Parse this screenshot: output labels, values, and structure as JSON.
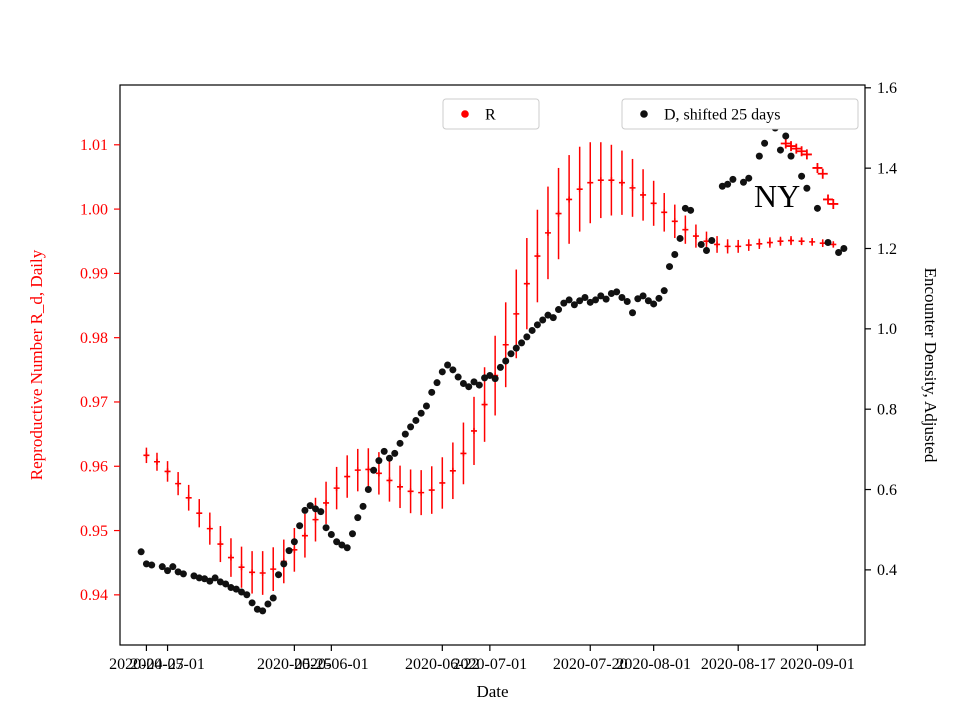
{
  "figure": {
    "annotation": {
      "text": "NY",
      "date": "2020-08-20",
      "value_left": 1.0003
    }
  },
  "chart_data": {
    "type": "scatter",
    "title": "",
    "xlabel": "Date",
    "x_lim": [
      "2020-04-22",
      "2020-09-10"
    ],
    "x_ticks_months": [
      "2020-05-01",
      "2020-06-01",
      "2020-07-01",
      "2020-08-01",
      "2020-09-01"
    ],
    "x_ticks_weeks": [
      "2020-04-27",
      "2020-05-25",
      "2020-06-22",
      "2020-07-20",
      "2020-08-17"
    ],
    "y_left": {
      "label": "Reproductive Number R_d, Daily",
      "color": "#ff0000",
      "lim": [
        0.9322,
        1.0193
      ],
      "ticks": [
        [
          0.94,
          "0.94"
        ],
        [
          0.95,
          "0.95"
        ],
        [
          0.96,
          "0.96"
        ],
        [
          0.97,
          "0.97"
        ],
        [
          0.98,
          "0.98"
        ],
        [
          0.99,
          "0.99"
        ],
        [
          1.0,
          "1.00"
        ],
        [
          1.01,
          "1.01"
        ]
      ]
    },
    "y_right": {
      "label": "Encounter Density, Adjusted",
      "color": "#000000",
      "lim": [
        0.213,
        1.607
      ],
      "ticks": [
        [
          0.4,
          "0.4"
        ],
        [
          0.6,
          "0.6"
        ],
        [
          0.8,
          "0.8"
        ],
        [
          1.0,
          "1.0"
        ],
        [
          1.2,
          "1.2"
        ],
        [
          1.4,
          "1.4"
        ],
        [
          1.6,
          "1.6"
        ]
      ]
    },
    "legends": [
      {
        "label": "R",
        "marker_color": "#ff0000"
      },
      {
        "label": "D, shifted 25 days",
        "marker_color": "#111111"
      }
    ],
    "series": [
      {
        "name": "R",
        "axis": "left",
        "color": "#ff0000",
        "marker": "plus-errorbar",
        "points": [
          [
            "2020-04-27",
            0.9617,
            0.0012
          ],
          [
            "2020-04-29",
            0.9607,
            0.0014
          ],
          [
            "2020-05-01",
            0.9592,
            0.0016
          ],
          [
            "2020-05-03",
            0.9573,
            0.0018
          ],
          [
            "2020-05-05",
            0.9551,
            0.002
          ],
          [
            "2020-05-07",
            0.9527,
            0.0022
          ],
          [
            "2020-05-09",
            0.9503,
            0.0025
          ],
          [
            "2020-05-11",
            0.9479,
            0.0028
          ],
          [
            "2020-05-13",
            0.9458,
            0.003
          ],
          [
            "2020-05-15",
            0.9443,
            0.0032
          ],
          [
            "2020-05-17",
            0.9435,
            0.0033
          ],
          [
            "2020-05-19",
            0.9434,
            0.0034
          ],
          [
            "2020-05-21",
            0.944,
            0.0034
          ],
          [
            "2020-05-23",
            0.9452,
            0.0034
          ],
          [
            "2020-05-25",
            0.947,
            0.0034
          ],
          [
            "2020-05-27",
            0.9492,
            0.0034
          ],
          [
            "2020-05-29",
            0.9517,
            0.0034
          ],
          [
            "2020-05-31",
            0.9543,
            0.0033
          ],
          [
            "2020-06-02",
            0.9566,
            0.0033
          ],
          [
            "2020-06-04",
            0.9584,
            0.0033
          ],
          [
            "2020-06-06",
            0.9594,
            0.0033
          ],
          [
            "2020-06-08",
            0.9595,
            0.0033
          ],
          [
            "2020-06-10",
            0.9589,
            0.0033
          ],
          [
            "2020-06-12",
            0.9578,
            0.0033
          ],
          [
            "2020-06-14",
            0.9568,
            0.0033
          ],
          [
            "2020-06-16",
            0.9561,
            0.0034
          ],
          [
            "2020-06-18",
            0.9559,
            0.0035
          ],
          [
            "2020-06-20",
            0.9563,
            0.0037
          ],
          [
            "2020-06-22",
            0.9574,
            0.004
          ],
          [
            "2020-06-24",
            0.9593,
            0.0044
          ],
          [
            "2020-06-26",
            0.962,
            0.0048
          ],
          [
            "2020-06-28",
            0.9655,
            0.0053
          ],
          [
            "2020-06-30",
            0.9696,
            0.0058
          ],
          [
            "2020-07-02",
            0.9741,
            0.0062
          ],
          [
            "2020-07-04",
            0.9789,
            0.0066
          ],
          [
            "2020-07-06",
            0.9837,
            0.0069
          ],
          [
            "2020-07-08",
            0.9884,
            0.0071
          ],
          [
            "2020-07-10",
            0.9927,
            0.0072
          ],
          [
            "2020-07-12",
            0.9963,
            0.0072
          ],
          [
            "2020-07-14",
            0.9993,
            0.0071
          ],
          [
            "2020-07-16",
            1.0015,
            0.0069
          ],
          [
            "2020-07-18",
            1.0031,
            0.0066
          ],
          [
            "2020-07-20",
            1.0041,
            0.0063
          ],
          [
            "2020-07-22",
            1.0045,
            0.0059
          ],
          [
            "2020-07-24",
            1.0045,
            0.0055
          ],
          [
            "2020-07-26",
            1.0041,
            0.005
          ],
          [
            "2020-07-28",
            1.0033,
            0.0045
          ],
          [
            "2020-07-30",
            1.0022,
            0.004
          ],
          [
            "2020-08-01",
            1.0009,
            0.0035
          ],
          [
            "2020-08-03",
            0.9995,
            0.003
          ],
          [
            "2020-08-05",
            0.9981,
            0.0026
          ],
          [
            "2020-08-07",
            0.9968,
            0.0022
          ],
          [
            "2020-08-09",
            0.9958,
            0.0018
          ],
          [
            "2020-08-11",
            0.995,
            0.0015
          ],
          [
            "2020-08-13",
            0.9945,
            0.0013
          ],
          [
            "2020-08-15",
            0.9942,
            0.0011
          ],
          [
            "2020-08-17",
            0.9942,
            0.001
          ],
          [
            "2020-08-19",
            0.9944,
            0.0009
          ],
          [
            "2020-08-21",
            0.9946,
            0.0008
          ],
          [
            "2020-08-23",
            0.9948,
            0.0008
          ],
          [
            "2020-08-25",
            0.995,
            0.0007
          ],
          [
            "2020-08-27",
            0.9951,
            0.0007
          ],
          [
            "2020-08-29",
            0.995,
            0.0006
          ],
          [
            "2020-08-31",
            0.9949,
            0.0006
          ],
          [
            "2020-09-02",
            0.9947,
            0.0006
          ],
          [
            "2020-09-04",
            0.9945,
            0.0005
          ]
        ]
      },
      {
        "name": "R outliers",
        "axis": "left",
        "color": "#ff0000",
        "marker": "plus",
        "points": [
          [
            "2020-08-24",
            1.015
          ],
          [
            "2020-08-26",
            1.0102
          ],
          [
            "2020-08-27",
            1.0098
          ],
          [
            "2020-08-28",
            1.0094
          ],
          [
            "2020-08-29",
            1.009
          ],
          [
            "2020-08-30",
            1.0085
          ],
          [
            "2020-09-01",
            1.0064
          ],
          [
            "2020-09-02",
            1.0055
          ],
          [
            "2020-09-03",
            1.0015
          ],
          [
            "2020-09-04",
            1.0008
          ]
        ]
      },
      {
        "name": "masked point",
        "axis": "right",
        "color": "#b3b3b3",
        "marker": "dot",
        "points": [
          [
            "2020-08-23",
            1.505
          ]
        ]
      },
      {
        "name": "D, shifted 25 days",
        "axis": "right",
        "color": "#111111",
        "marker": "dot",
        "points": [
          [
            "2020-04-26",
            0.445
          ],
          [
            "2020-04-27",
            0.415
          ],
          [
            "2020-04-28",
            0.412
          ],
          [
            "2020-04-30",
            0.408
          ],
          [
            "2020-05-01",
            0.398
          ],
          [
            "2020-05-02",
            0.408
          ],
          [
            "2020-05-03",
            0.395
          ],
          [
            "2020-05-04",
            0.39
          ],
          [
            "2020-05-06",
            0.385
          ],
          [
            "2020-05-07",
            0.38
          ],
          [
            "2020-05-08",
            0.378
          ],
          [
            "2020-05-09",
            0.372
          ],
          [
            "2020-05-10",
            0.38
          ],
          [
            "2020-05-11",
            0.37
          ],
          [
            "2020-05-12",
            0.365
          ],
          [
            "2020-05-13",
            0.356
          ],
          [
            "2020-05-14",
            0.352
          ],
          [
            "2020-05-15",
            0.345
          ],
          [
            "2020-05-16",
            0.338
          ],
          [
            "2020-05-17",
            0.318
          ],
          [
            "2020-05-18",
            0.302
          ],
          [
            "2020-05-19",
            0.298
          ],
          [
            "2020-05-20",
            0.315
          ],
          [
            "2020-05-21",
            0.33
          ],
          [
            "2020-05-22",
            0.388
          ],
          [
            "2020-05-23",
            0.415
          ],
          [
            "2020-05-24",
            0.448
          ],
          [
            "2020-05-25",
            0.47
          ],
          [
            "2020-05-26",
            0.51
          ],
          [
            "2020-05-27",
            0.548
          ],
          [
            "2020-05-28",
            0.56
          ],
          [
            "2020-05-29",
            0.552
          ],
          [
            "2020-05-30",
            0.545
          ],
          [
            "2020-05-31",
            0.505
          ],
          [
            "2020-06-01",
            0.488
          ],
          [
            "2020-06-02",
            0.47
          ],
          [
            "2020-06-03",
            0.462
          ],
          [
            "2020-06-04",
            0.455
          ],
          [
            "2020-06-05",
            0.49
          ],
          [
            "2020-06-06",
            0.53
          ],
          [
            "2020-06-07",
            0.558
          ],
          [
            "2020-06-08",
            0.6
          ],
          [
            "2020-06-09",
            0.648
          ],
          [
            "2020-06-10",
            0.672
          ],
          [
            "2020-06-11",
            0.695
          ],
          [
            "2020-06-12",
            0.678
          ],
          [
            "2020-06-13",
            0.69
          ],
          [
            "2020-06-14",
            0.715
          ],
          [
            "2020-06-15",
            0.738
          ],
          [
            "2020-06-16",
            0.756
          ],
          [
            "2020-06-17",
            0.772
          ],
          [
            "2020-06-18",
            0.79
          ],
          [
            "2020-06-19",
            0.808
          ],
          [
            "2020-06-20",
            0.842
          ],
          [
            "2020-06-21",
            0.866
          ],
          [
            "2020-06-22",
            0.893
          ],
          [
            "2020-06-23",
            0.91
          ],
          [
            "2020-06-24",
            0.898
          ],
          [
            "2020-06-25",
            0.88
          ],
          [
            "2020-06-26",
            0.864
          ],
          [
            "2020-06-27",
            0.856
          ],
          [
            "2020-06-28",
            0.868
          ],
          [
            "2020-06-29",
            0.86
          ],
          [
            "2020-06-30",
            0.878
          ],
          [
            "2020-07-01",
            0.884
          ],
          [
            "2020-07-02",
            0.876
          ],
          [
            "2020-07-03",
            0.904
          ],
          [
            "2020-07-04",
            0.92
          ],
          [
            "2020-07-05",
            0.938
          ],
          [
            "2020-07-06",
            0.952
          ],
          [
            "2020-07-07",
            0.965
          ],
          [
            "2020-07-08",
            0.98
          ],
          [
            "2020-07-09",
            0.996
          ],
          [
            "2020-07-10",
            1.01
          ],
          [
            "2020-07-11",
            1.022
          ],
          [
            "2020-07-12",
            1.034
          ],
          [
            "2020-07-13",
            1.028
          ],
          [
            "2020-07-14",
            1.048
          ],
          [
            "2020-07-15",
            1.064
          ],
          [
            "2020-07-16",
            1.072
          ],
          [
            "2020-07-17",
            1.06
          ],
          [
            "2020-07-18",
            1.07
          ],
          [
            "2020-07-19",
            1.078
          ],
          [
            "2020-07-20",
            1.066
          ],
          [
            "2020-07-21",
            1.072
          ],
          [
            "2020-07-22",
            1.082
          ],
          [
            "2020-07-23",
            1.074
          ],
          [
            "2020-07-24",
            1.088
          ],
          [
            "2020-07-25",
            1.092
          ],
          [
            "2020-07-26",
            1.078
          ],
          [
            "2020-07-27",
            1.068
          ],
          [
            "2020-07-28",
            1.04
          ],
          [
            "2020-07-29",
            1.075
          ],
          [
            "2020-07-30",
            1.082
          ],
          [
            "2020-07-31",
            1.07
          ],
          [
            "2020-08-01",
            1.062
          ],
          [
            "2020-08-02",
            1.076
          ],
          [
            "2020-08-03",
            1.095
          ],
          [
            "2020-08-04",
            1.155
          ],
          [
            "2020-08-05",
            1.185
          ],
          [
            "2020-08-06",
            1.225
          ],
          [
            "2020-08-07",
            1.3
          ],
          [
            "2020-08-08",
            1.295
          ],
          [
            "2020-08-10",
            1.21
          ],
          [
            "2020-08-11",
            1.195
          ],
          [
            "2020-08-12",
            1.22
          ],
          [
            "2020-08-14",
            1.355
          ],
          [
            "2020-08-15",
            1.36
          ],
          [
            "2020-08-16",
            1.372
          ],
          [
            "2020-08-18",
            1.365
          ],
          [
            "2020-08-19",
            1.375
          ],
          [
            "2020-08-21",
            1.43
          ],
          [
            "2020-08-22",
            1.462
          ],
          [
            "2020-08-23",
            1.52
          ],
          [
            "2020-08-24",
            1.5
          ],
          [
            "2020-08-25",
            1.445
          ],
          [
            "2020-08-26",
            1.48
          ],
          [
            "2020-08-27",
            1.43
          ],
          [
            "2020-08-29",
            1.38
          ],
          [
            "2020-08-30",
            1.35
          ],
          [
            "2020-09-01",
            1.3
          ],
          [
            "2020-09-03",
            1.215
          ],
          [
            "2020-09-05",
            1.19
          ],
          [
            "2020-09-06",
            1.2
          ]
        ]
      }
    ]
  }
}
